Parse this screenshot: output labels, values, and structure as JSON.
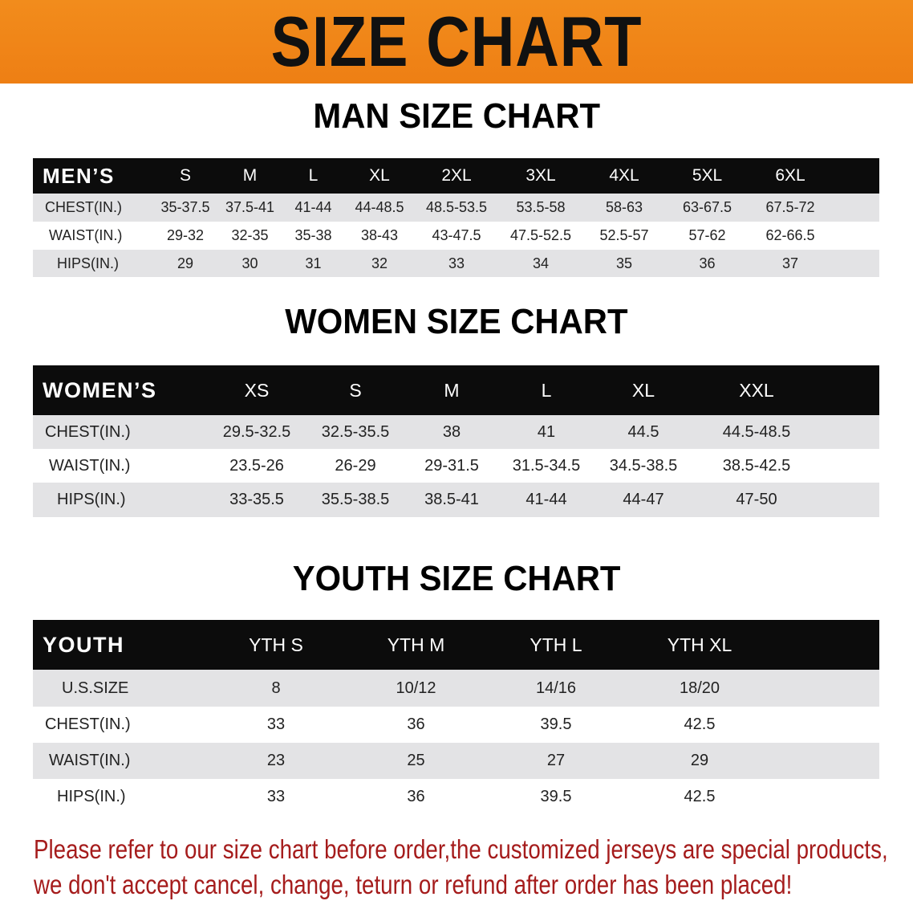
{
  "banner": "SIZE CHART",
  "men": {
    "title": "MAN SIZE CHART",
    "header": "MEN’S",
    "sizes": [
      "S",
      "M",
      "L",
      "XL",
      "2XL",
      "3XL",
      "4XL",
      "5XL",
      "6XL"
    ],
    "rows": [
      {
        "label": "CHEST(IN.)",
        "values": [
          "35-37.5",
          "37.5-41",
          "41-44",
          "44-48.5",
          "48.5-53.5",
          "53.5-58",
          "58-63",
          "63-67.5",
          "67.5-72"
        ]
      },
      {
        "label": "WAIST(IN.)",
        "values": [
          "29-32",
          "32-35",
          "35-38",
          "38-43",
          "43-47.5",
          "47.5-52.5",
          "52.5-57",
          "57-62",
          "62-66.5"
        ]
      },
      {
        "label": "HIPS(IN.)",
        "values": [
          "29",
          "30",
          "31",
          "32",
          "33",
          "34",
          "35",
          "36",
          "37"
        ]
      }
    ]
  },
  "women": {
    "title": "WOMEN SIZE CHART",
    "header": "WOMEN’S",
    "sizes": [
      "XS",
      "S",
      "M",
      "L",
      "XL",
      "XXL"
    ],
    "rows": [
      {
        "label": "CHEST(IN.)",
        "values": [
          "29.5-32.5",
          "32.5-35.5",
          "38",
          "41",
          "44.5",
          "44.5-48.5"
        ]
      },
      {
        "label": "WAIST(IN.)",
        "values": [
          "23.5-26",
          "26-29",
          "29-31.5",
          "31.5-34.5",
          "34.5-38.5",
          "38.5-42.5"
        ]
      },
      {
        "label": "HIPS(IN.)",
        "values": [
          "33-35.5",
          "35.5-38.5",
          "38.5-41",
          "41-44",
          "44-47",
          "47-50"
        ]
      }
    ]
  },
  "youth": {
    "title": "YOUTH SIZE CHART",
    "header": "YOUTH",
    "sizes": [
      "YTH S",
      "YTH M",
      "YTH L",
      "YTH XL"
    ],
    "rows": [
      {
        "label": "U.S.SIZE",
        "values": [
          "8",
          "10/12",
          "14/16",
          "18/20"
        ]
      },
      {
        "label": "CHEST(IN.)",
        "values": [
          "33",
          "36",
          "39.5",
          "42.5"
        ]
      },
      {
        "label": "WAIST(IN.)",
        "values": [
          "23",
          "25",
          "27",
          "29"
        ]
      },
      {
        "label": "HIPS(IN.)",
        "values": [
          "33",
          "36",
          "39.5",
          "42.5"
        ]
      }
    ]
  },
  "note": {
    "line1": "Please refer to our size chart before order,the customized jerseys are special products,",
    "line2": "we don't accept cancel, change, teturn or refund after order has been placed!"
  }
}
